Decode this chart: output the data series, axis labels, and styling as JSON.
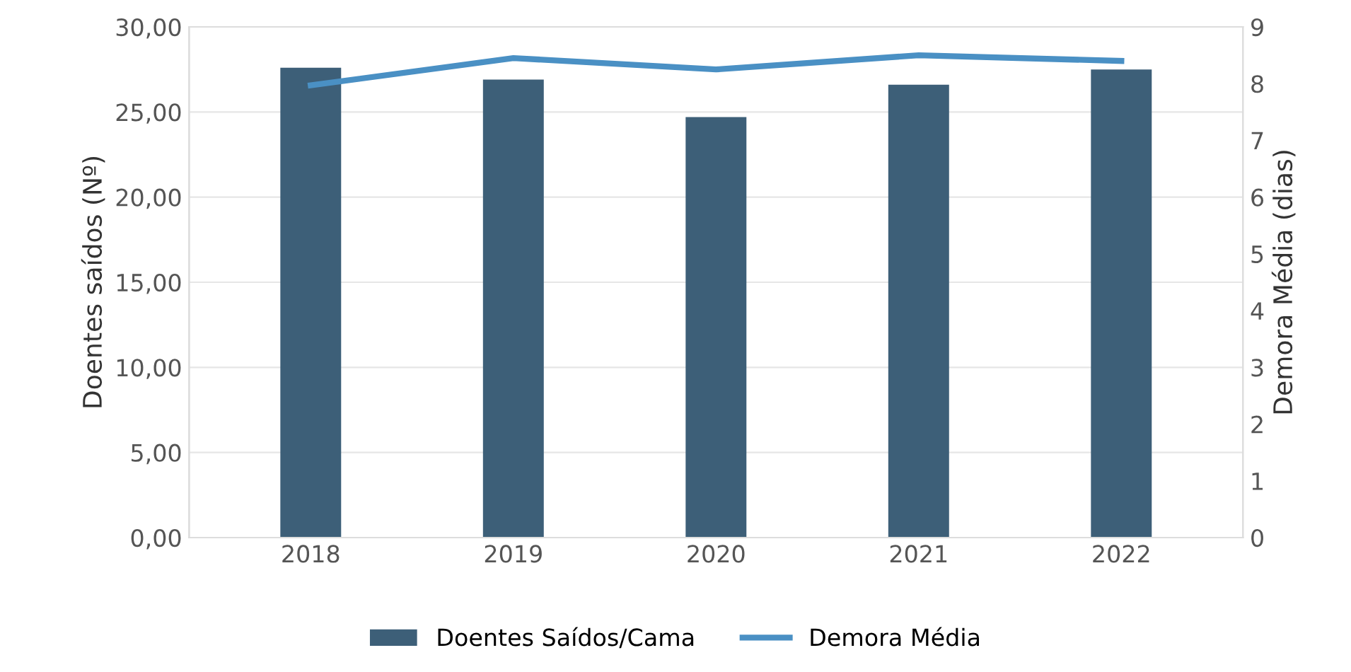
{
  "chart_data": {
    "type": "bar",
    "categories": [
      "2018",
      "2019",
      "2020",
      "2021",
      "2022"
    ],
    "ylabel": "Doentes saídos (Nº)",
    "y2label": "Demora Média (dias)",
    "series": [
      {
        "name": "Doentes Saídos/Cama",
        "color": "#3d5f78",
        "values": [
          27.6,
          26.9,
          24.7,
          26.6,
          27.5
        ]
      },
      {
        "name": "Demora Média",
        "type": "line",
        "axis": "y2",
        "color": "#4a90c4",
        "values": [
          7.97,
          8.45,
          8.25,
          8.5,
          8.4
        ]
      }
    ],
    "ylim": [
      0,
      30
    ],
    "yticks": [
      {
        "value": 0,
        "label": "0,00"
      },
      {
        "value": 5,
        "label": "5,00"
      },
      {
        "value": 10,
        "label": "10,00"
      },
      {
        "value": 15,
        "label": "15,00"
      },
      {
        "value": 20,
        "label": "20,00"
      },
      {
        "value": 25,
        "label": "25,00"
      },
      {
        "value": 30,
        "label": "30,00"
      }
    ],
    "y2lim": [
      0,
      9
    ],
    "y2ticks": [
      0,
      1,
      2,
      3,
      4,
      5,
      6,
      7,
      8,
      9
    ],
    "grid": "y",
    "legend": "bottom",
    "marker": "none",
    "line_style": "solid"
  }
}
